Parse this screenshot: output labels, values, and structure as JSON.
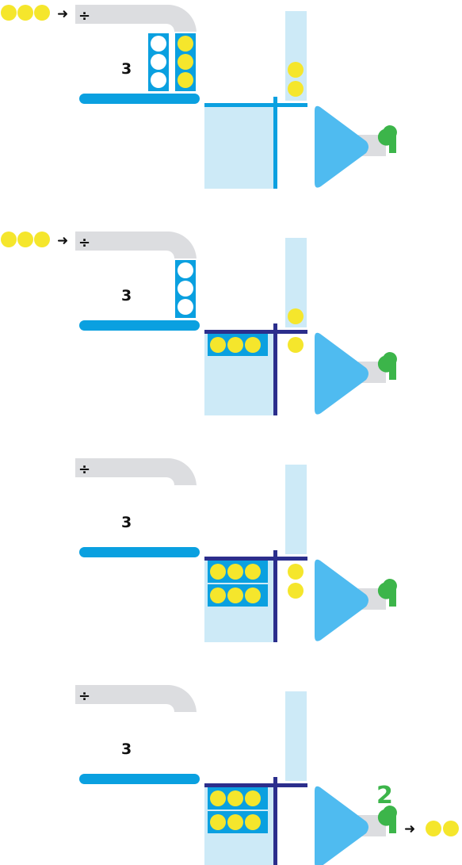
{
  "colors": {
    "token_yellow": "#f5e62c",
    "token_white": "#ffffff",
    "blue_dark": "#0aa0e0",
    "blue_light": "#cdeaf7",
    "blue_shade": "#b6dff2",
    "navy": "#2b2e8c",
    "funnel_blue": "#4fbbf0",
    "pipe_gray": "#dcdde0",
    "green": "#3cb54a",
    "text": "#111111"
  },
  "operator": {
    "symbol": "÷",
    "icon": "division-icon"
  },
  "arrow": {
    "symbol": "➜",
    "icon": "arrow-right-icon"
  },
  "result": {
    "value": "2",
    "output_tokens": 2
  },
  "steps": [
    {
      "divisor_label": "3",
      "input_tokens": 3,
      "hopper_columns": [
        {
          "white": 3
        },
        {
          "yellow": 3
        }
      ],
      "grouped_rows": 0,
      "falling_tokens": 2,
      "remainder_tokens": 0,
      "divider": "blue",
      "show_result": false
    },
    {
      "divisor_label": "3",
      "input_tokens": 3,
      "hopper_columns": [
        {
          "white": 3
        }
      ],
      "grouped_rows": 1,
      "falling_tokens": 1,
      "remainder_tokens": 1,
      "divider": "navy",
      "show_result": false
    },
    {
      "divisor_label": "3",
      "input_tokens": 0,
      "hopper_columns": [],
      "grouped_rows": 2,
      "falling_tokens": 0,
      "remainder_tokens": 2,
      "divider": "navy",
      "show_result": false
    },
    {
      "divisor_label": "3",
      "input_tokens": 0,
      "hopper_columns": [],
      "grouped_rows": 2,
      "falling_tokens": 0,
      "remainder_tokens": 0,
      "divider": "navy",
      "show_result": true
    }
  ]
}
